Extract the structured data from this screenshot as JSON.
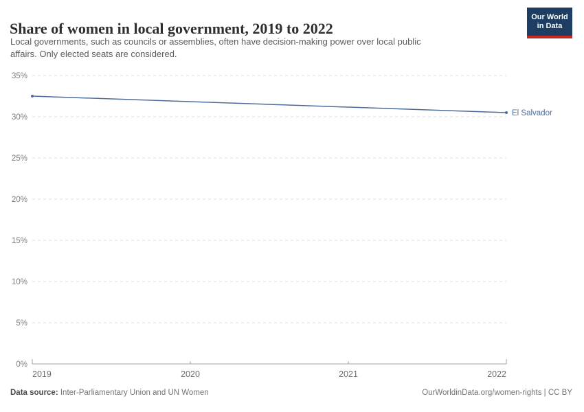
{
  "header": {
    "title": "Share of women in local government, 2019 to 2022",
    "subtitle_line1": "Local governments, such as councils or assemblies, often have decision-making power over local public",
    "subtitle_line2": "affairs. Only elected seats are considered."
  },
  "logo": {
    "line1": "Our World",
    "line2": "in Data",
    "bg_color": "#1d3d63",
    "stripe_color": "#c62828"
  },
  "chart_data": {
    "type": "line",
    "title": "Share of women in local government, 2019 to 2022",
    "xlabel": "",
    "ylabel": "",
    "xlim": [
      2019,
      2022
    ],
    "ylim": [
      0,
      35
    ],
    "x_ticks": [
      2019,
      2020,
      2021,
      2022
    ],
    "y_tick_step": 5,
    "y_tick_suffix": "%",
    "grid": "horizontal-dashed",
    "legend_position": "end-of-line-label",
    "series": [
      {
        "name": "El Salvador",
        "end_label": "El Salvador",
        "color": "#4C6A9C",
        "x": [
          2019,
          2022
        ],
        "values": [
          32.5,
          30.5
        ],
        "markers": "endpoints"
      }
    ]
  },
  "style_colors": {
    "grid": "#dcdcdc",
    "axis": "#a3a3a3",
    "y_tick_label": "#7e7e7e",
    "x_tick_label": "#6d6d6d"
  },
  "footer": {
    "source_label": "Data source:",
    "source_text": " Inter-Parliamentary Union and UN Women",
    "credit": "OurWorldinData.org/women-rights | CC BY"
  }
}
